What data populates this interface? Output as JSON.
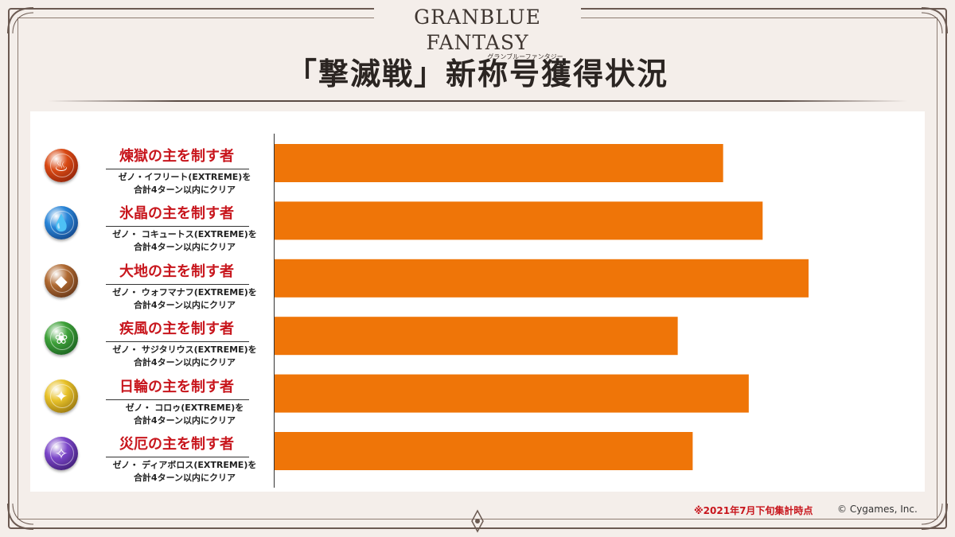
{
  "logo": {
    "main": "GRANBLUE FANTASY",
    "sub": "グランブルーファンタジー"
  },
  "title": "「撃滅戦」新称号獲得状況",
  "chart_data": {
    "type": "bar",
    "orientation": "horizontal",
    "categories": [
      "煉獄の主を制す者",
      "氷晶の主を制す者",
      "大地の主を制す者",
      "疾風の主を制す者",
      "日輪の主を制す者",
      "災厄の主を制す者"
    ],
    "values": [
      0.84,
      0.914,
      1.0,
      0.755,
      0.888,
      0.783
    ],
    "value_scale": "relative (no axis values printed)",
    "xlim": [
      0,
      1
    ],
    "bar_color": "#ef7508",
    "grid": false,
    "legend": "none"
  },
  "rows": [
    {
      "title": "煉獄の主を制す者",
      "condition1": "ゼノ・イフリート(EXTREME)を",
      "condition2": "合計4ターン以内にクリア",
      "emblem": "fire-emblem-icon",
      "glyph": "♨",
      "color": "#d94a14",
      "dark": "#7a1505"
    },
    {
      "title": "氷晶の主を制す者",
      "condition1": "ゼノ・ コキュートス(EXTREME)を",
      "condition2": "合計4ターン以内にクリア",
      "emblem": "water-emblem-icon",
      "glyph": "💧",
      "color": "#2a86d8",
      "dark": "#0b2f6e"
    },
    {
      "title": "大地の主を制す者",
      "condition1": "ゼノ・ ウォフマナフ(EXTREME)を",
      "condition2": "合計4ターン以内にクリア",
      "emblem": "earth-emblem-icon",
      "glyph": "◆",
      "color": "#b06a32",
      "dark": "#4d2510"
    },
    {
      "title": "疾風の主を制す者",
      "condition1": "ゼノ・ サジタリウス(EXTREME)を",
      "condition2": "合計4ターン以内にクリア",
      "emblem": "wind-emblem-icon",
      "glyph": "❀",
      "color": "#3fa23a",
      "dark": "#0d4a16"
    },
    {
      "title": "日輪の主を制す者",
      "condition1": "ゼノ・ コロゥ(EXTREME)を",
      "condition2": "合計4ターン以内にクリア",
      "emblem": "light-emblem-icon",
      "glyph": "✦",
      "color": "#e8c22a",
      "dark": "#7a5a05"
    },
    {
      "title": "災厄の主を制す者",
      "condition1": "ゼノ・ ディアボロス(EXTREME)を",
      "condition2": "合計4ターン以内にクリア",
      "emblem": "dark-emblem-icon",
      "glyph": "✧",
      "color": "#7b46c9",
      "dark": "#2a0f57"
    }
  ],
  "footnote": "※2021年7月下旬集計時点",
  "copyright": "© Cygames, Inc."
}
